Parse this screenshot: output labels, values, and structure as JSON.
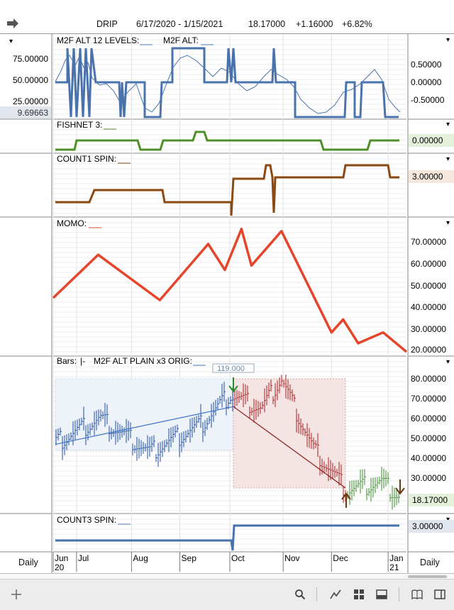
{
  "header": {
    "symbol": "DRIP",
    "date_range": "6/17/2020 - 1/15/2021",
    "last": "18.17000",
    "change": "+1.16000",
    "change_pct": "+6.82%"
  },
  "interval_left": "Daily",
  "interval_right": "Daily",
  "x_axis": {
    "months": [
      "Jun",
      "Jul",
      "Aug",
      "Sep",
      "Oct",
      "Nov",
      "Dec",
      "Jan"
    ],
    "years": [
      "20",
      "21"
    ]
  },
  "panels": {
    "m2f": {
      "label1": "M2F ALT 12 LEVELS:",
      "label2": "M2F ALT:",
      "left_ticks": [
        "75.00000",
        "50.00000",
        "25.00000"
      ],
      "left_value": "9.69663",
      "right_ticks": [
        "0.50000",
        "0.00000",
        "-0.50000"
      ]
    },
    "fishnet": {
      "label": "FISHNET 3:",
      "value": "0.00000"
    },
    "count1": {
      "label": "COUNT1 SPIN:",
      "value": "3.00000"
    },
    "momo": {
      "label": "MOMO:",
      "ticks": [
        "70.00000",
        "60.00000",
        "50.00000",
        "40.00000",
        "30.00000",
        "20.00000"
      ]
    },
    "bars": {
      "label1": "Bars:",
      "label2": "M2F ALT PLAIN x3 ORIG:",
      "ticks": [
        "80.00000",
        "70.00000",
        "60.00000",
        "50.00000",
        "40.00000",
        "30.00000"
      ],
      "last_value": "18.17000",
      "popup_value": "119.000"
    },
    "count3": {
      "label": "COUNT3 SPIN:",
      "value": "3.00000"
    }
  },
  "colors": {
    "blue_line": "#4a73ad",
    "green_line": "#4f8f2a",
    "brown_line": "#8a4a12",
    "momo_line": "#e5452a",
    "regression_blue": "#3b73c9",
    "regression_red": "#8a1a1a",
    "up_bar": "#1f4fa3",
    "down_bar": "#a81e1e",
    "after_bar": "#3b8a2a"
  },
  "chart_data": [
    {
      "type": "line",
      "title": "M2F ALT 12 LEVELS",
      "series": [
        {
          "name": "M2F ALT 12 LEVELS",
          "values": [
            null
          ]
        },
        {
          "name": "M2F ALT",
          "values": [
            null
          ]
        }
      ],
      "ylim": [
        0,
        100
      ]
    },
    {
      "type": "line",
      "title": "MOMO",
      "x": [
        "2020-06-17",
        "2020-07-14",
        "2020-08-20",
        "2020-09-18",
        "2020-09-28",
        "2020-10-08",
        "2020-10-14",
        "2020-11-01",
        "2020-12-01",
        "2020-12-08",
        "2020-12-17",
        "2021-01-01",
        "2021-01-15"
      ],
      "values": [
        44,
        64,
        43,
        69,
        57,
        76,
        59,
        75,
        28,
        34,
        23,
        28,
        19
      ],
      "ylim": [
        18,
        78
      ]
    },
    {
      "type": "line",
      "title": "DRIP price bars",
      "x": [
        "2020-06-17",
        "2020-07-15",
        "2020-08-14",
        "2020-09-14",
        "2020-10-01",
        "2020-10-20",
        "2020-11-01",
        "2020-11-20",
        "2020-12-10",
        "2020-12-31",
        "2021-01-15"
      ],
      "values": [
        47,
        60,
        43,
        57,
        72,
        65,
        80,
        45,
        24,
        28,
        18.17
      ],
      "ylim": [
        15,
        85
      ]
    }
  ]
}
